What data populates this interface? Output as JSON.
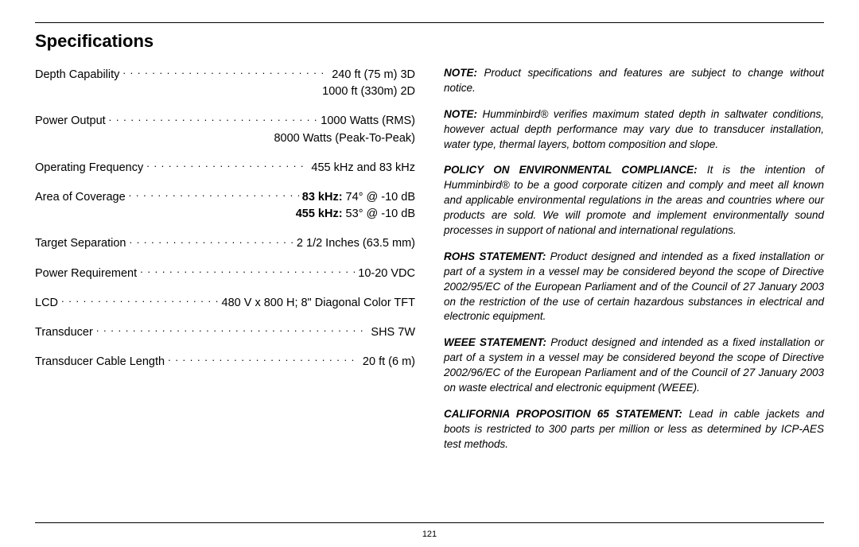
{
  "title": "Specifications",
  "pageNumber": "121",
  "specs": [
    {
      "label": "Depth Capability",
      "value": "240 ft (75 m) 3D",
      "extras": [
        "1000 ft (330m) 2D"
      ]
    },
    {
      "label": "Power Output",
      "value": "1000 Watts (RMS)",
      "extras": [
        "8000 Watts (Peak-To-Peak)"
      ]
    },
    {
      "label": "Operating Frequency",
      "value": "455 kHz and 83 kHz",
      "extras": []
    },
    {
      "label": "Area of Coverage",
      "value_html": [
        {
          "t": "83 kHz:",
          "b": true
        },
        {
          "t": " 74° @ -10 dB",
          "b": false
        }
      ],
      "extras_html": [
        [
          {
            "t": "455 kHz:",
            "b": true
          },
          {
            "t": " 53° @ -10 dB",
            "b": false
          }
        ]
      ]
    },
    {
      "label": "Target Separation",
      "value": "2 1/2 Inches (63.5 mm)",
      "extras": []
    },
    {
      "label": "Power Requirement",
      "value": "10-20 VDC",
      "extras": []
    },
    {
      "label": "LCD",
      "value": "480 V x 800 H; 8\" Diagonal Color TFT",
      "extras": []
    },
    {
      "label": "Transducer",
      "value": "SHS 7W",
      "extras": []
    },
    {
      "label": "Transducer Cable Length",
      "value": "20 ft (6 m)",
      "extras": []
    }
  ],
  "notes": [
    {
      "lead": "NOTE:",
      "body": "Product specifications and features are subject to change without notice."
    },
    {
      "lead": "NOTE:",
      "body": "Humminbird® verifies maximum stated depth in saltwater conditions, however actual depth performance may vary due to transducer installation, water type, thermal layers, bottom composition and slope."
    },
    {
      "lead": "POLICY ON ENVIRONMENTAL COMPLIANCE:",
      "body": "It is the intention of Humminbird® to be a good corporate citizen and comply and meet all known and applicable environmental regulations in the areas and countries where our products are sold. We will promote and implement environmentally sound processes in support of national and international regulations."
    },
    {
      "lead": "ROHS STATEMENT:",
      "body": "Product designed and intended as a fixed installation or part of a system in a vessel may be considered beyond the scope of Directive 2002/95/EC of the European Parliament and of the Council of 27 January 2003 on the restriction of the use of certain hazardous substances in electrical and electronic equipment."
    },
    {
      "lead": "WEEE STATEMENT:",
      "body": "Product designed and intended as a fixed installation or part of a system in a vessel may be considered beyond the scope of Directive 2002/96/EC of the European Parliament and of the Council of 27 January 2003 on waste electrical and electronic equipment (WEEE)."
    },
    {
      "lead": "CALIFORNIA PROPOSITION 65 STATEMENT:",
      "body": "Lead in cable jackets and boots is restricted to 300 parts per million or less as determined by ICP-AES test methods."
    }
  ]
}
